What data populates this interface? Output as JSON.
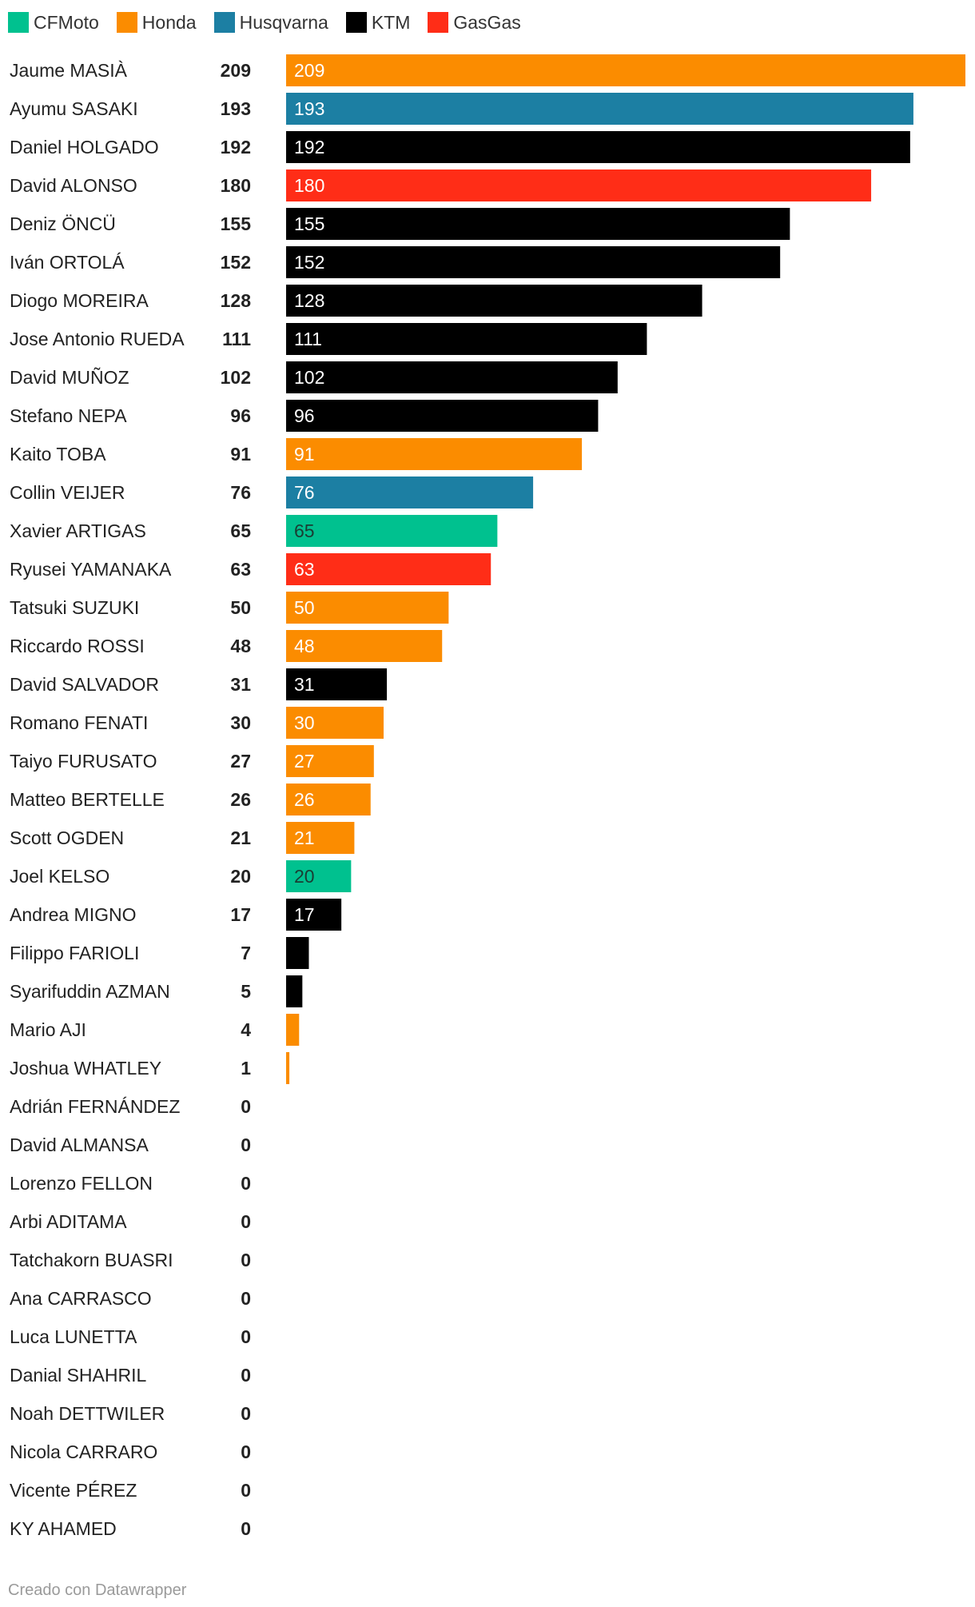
{
  "legend": [
    {
      "name": "CFMoto",
      "color": "#00c18f"
    },
    {
      "name": "Honda",
      "color": "#fb8c00"
    },
    {
      "name": "Husqvarna",
      "color": "#1c7fa3"
    },
    {
      "name": "KTM",
      "color": "#000000"
    },
    {
      "name": "GasGas",
      "color": "#ff2d17"
    }
  ],
  "chart_data": {
    "type": "bar",
    "orientation": "horizontal",
    "xlim": [
      0,
      209
    ],
    "grid": false,
    "legend_position": "top-left",
    "rows": [
      {
        "name": "Jaume MASIÀ",
        "value": 209,
        "brand": "Honda"
      },
      {
        "name": "Ayumu SASAKI",
        "value": 193,
        "brand": "Husqvarna"
      },
      {
        "name": "Daniel HOLGADO",
        "value": 192,
        "brand": "KTM"
      },
      {
        "name": "David ALONSO",
        "value": 180,
        "brand": "GasGas"
      },
      {
        "name": "Deniz ÖNCÜ",
        "value": 155,
        "brand": "KTM"
      },
      {
        "name": "Iván ORTOLÁ",
        "value": 152,
        "brand": "KTM"
      },
      {
        "name": "Diogo MOREIRA",
        "value": 128,
        "brand": "KTM"
      },
      {
        "name": "Jose Antonio RUEDA",
        "value": 111,
        "brand": "KTM"
      },
      {
        "name": "David MUÑOZ",
        "value": 102,
        "brand": "KTM"
      },
      {
        "name": "Stefano NEPA",
        "value": 96,
        "brand": "KTM"
      },
      {
        "name": "Kaito TOBA",
        "value": 91,
        "brand": "Honda"
      },
      {
        "name": "Collin VEIJER",
        "value": 76,
        "brand": "Husqvarna"
      },
      {
        "name": "Xavier ARTIGAS",
        "value": 65,
        "brand": "CFMoto"
      },
      {
        "name": "Ryusei YAMANAKA",
        "value": 63,
        "brand": "GasGas"
      },
      {
        "name": "Tatsuki SUZUKI",
        "value": 50,
        "brand": "Honda"
      },
      {
        "name": "Riccardo ROSSI",
        "value": 48,
        "brand": "Honda"
      },
      {
        "name": "David SALVADOR",
        "value": 31,
        "brand": "KTM"
      },
      {
        "name": "Romano FENATI",
        "value": 30,
        "brand": "Honda"
      },
      {
        "name": "Taiyo FURUSATO",
        "value": 27,
        "brand": "Honda"
      },
      {
        "name": "Matteo BERTELLE",
        "value": 26,
        "brand": "Honda"
      },
      {
        "name": "Scott OGDEN",
        "value": 21,
        "brand": "Honda"
      },
      {
        "name": "Joel KELSO",
        "value": 20,
        "brand": "CFMoto"
      },
      {
        "name": "Andrea MIGNO",
        "value": 17,
        "brand": "KTM"
      },
      {
        "name": "Filippo FARIOLI",
        "value": 7,
        "brand": "KTM"
      },
      {
        "name": "Syarifuddin AZMAN",
        "value": 5,
        "brand": "KTM"
      },
      {
        "name": "Mario AJI",
        "value": 4,
        "brand": "Honda"
      },
      {
        "name": "Joshua WHATLEY",
        "value": 1,
        "brand": "Honda"
      },
      {
        "name": "Adrián FERNÁNDEZ",
        "value": 0,
        "brand": ""
      },
      {
        "name": "David ALMANSA",
        "value": 0,
        "brand": ""
      },
      {
        "name": "Lorenzo FELLON",
        "value": 0,
        "brand": ""
      },
      {
        "name": "Arbi ADITAMA",
        "value": 0,
        "brand": ""
      },
      {
        "name": "Tatchakorn BUASRI",
        "value": 0,
        "brand": ""
      },
      {
        "name": "Ana CARRASCO",
        "value": 0,
        "brand": ""
      },
      {
        "name": "Luca LUNETTA",
        "value": 0,
        "brand": ""
      },
      {
        "name": "Danial SHAHRIL",
        "value": 0,
        "brand": ""
      },
      {
        "name": "Noah DETTWILER",
        "value": 0,
        "brand": ""
      },
      {
        "name": "Nicola CARRARO",
        "value": 0,
        "brand": ""
      },
      {
        "name": "Vicente PÉREZ",
        "value": 0,
        "brand": ""
      },
      {
        "name": "KY AHAMED",
        "value": 0,
        "brand": ""
      }
    ]
  },
  "footer": {
    "credit": "Creado con Datawrapper"
  }
}
